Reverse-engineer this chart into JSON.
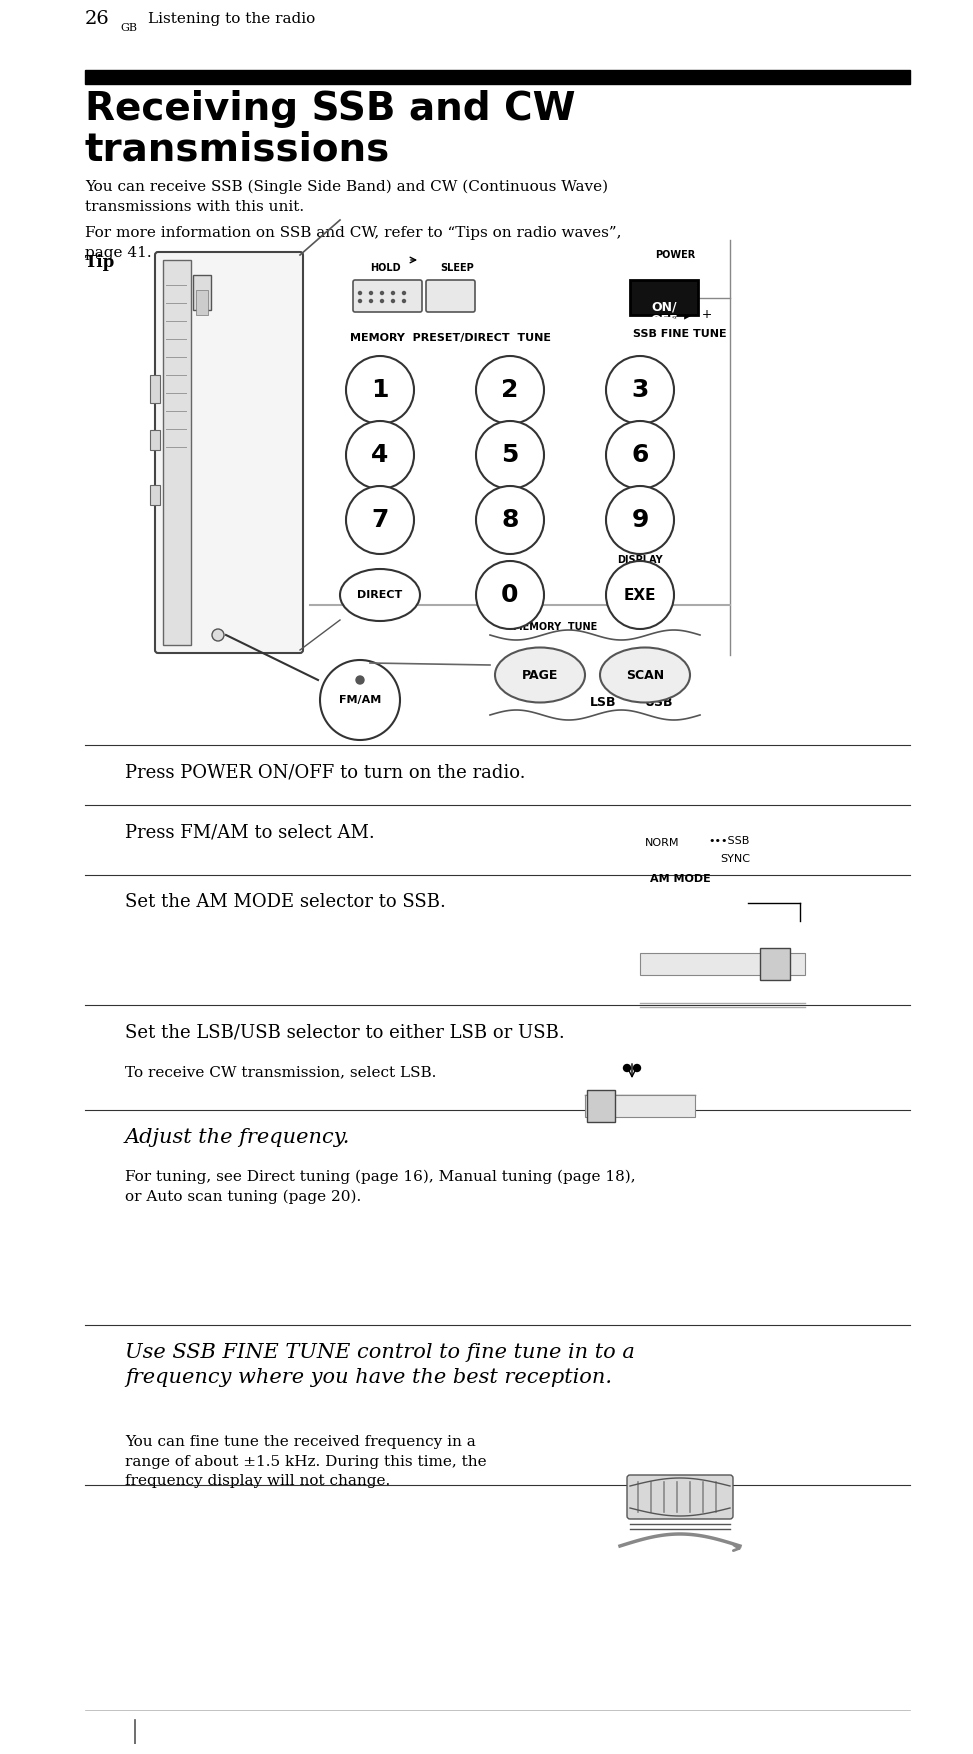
{
  "bg_color": "#ffffff",
  "title_bar_color": "#000000",
  "title_line1": "Receiving SSB and CW",
  "title_line2": "transmissions",
  "intro_text": "You can receive SSB (Single Side Band) and CW (Continuous Wave)\ntransmissions with this unit.",
  "step1_text": "Press POWER ON/OFF to turn on the radio.",
  "step2_text": "Press FM/AM to select AM.",
  "step3_text": "Set the AM MODE selector to SSB.",
  "step4_text": "Set the LSB/USB selector to either LSB or USB.",
  "step4_sub": "To receive CW transmission, select LSB.",
  "step5_text": "Adjust the frequency.",
  "step5_sub": "For tuning, see Direct tuning (page 16), Manual tuning (page 18),\nor Auto scan tuning (page 20).",
  "step6_text": "Use SSB FINE TUNE control to fine tune in to a\nfrequency where you have the best reception.",
  "step6_sub": "You can fine tune the received frequency in a\nrange of about ±1.5 kHz. During this time, the\nfrequency display will not change.",
  "tip_title": "Tip",
  "tip_text": "For more information on SSB and CW, refer to “Tips on radio waves”,\npage 41.",
  "footer_page": "26",
  "footer_super": "GB",
  "footer_text": "Listening to the radio"
}
